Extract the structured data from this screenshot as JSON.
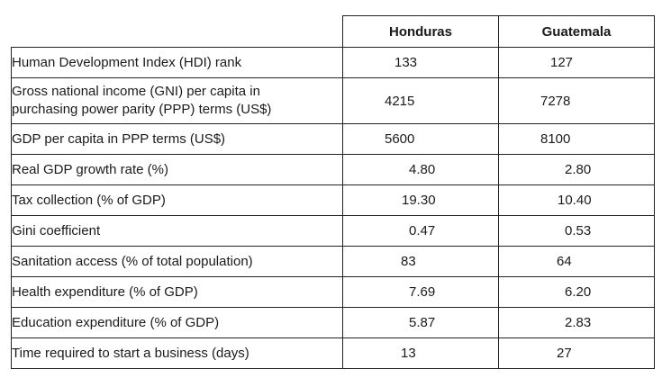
{
  "table": {
    "columns": [
      "Honduras",
      "Guatemala"
    ],
    "rows": [
      {
        "label": "Human Development Index (HDI) rank",
        "honduras": "133",
        "guatemala": "127"
      },
      {
        "label": "Gross national income (GNI) per capita in purchasing power parity (PPP) terms (US$)",
        "label_line1": "Gross national income (GNI) per capita in",
        "label_line2": "purchasing power parity (PPP) terms (US$)",
        "honduras": "4215",
        "guatemala": "7278"
      },
      {
        "label": "GDP per capita in PPP terms (US$)",
        "honduras": "5600",
        "guatemala": "8100"
      },
      {
        "label": "Real GDP growth rate (%)",
        "honduras": "4.80",
        "guatemala": "2.80"
      },
      {
        "label": "Tax collection (% of GDP)",
        "honduras": "19.30",
        "guatemala": "10.40"
      },
      {
        "label": "Gini coefficient",
        "honduras": "0.47",
        "guatemala": "0.53"
      },
      {
        "label": "Sanitation access (% of total population)",
        "honduras": "83",
        "guatemala": "64"
      },
      {
        "label": "Health expenditure (% of GDP)",
        "honduras": "7.69",
        "guatemala": "6.20"
      },
      {
        "label": "Education expenditure (% of GDP)",
        "honduras": "5.87",
        "guatemala": "2.83"
      },
      {
        "label": "Time required to start a business (days)",
        "honduras": "13",
        "guatemala": "27"
      }
    ]
  }
}
